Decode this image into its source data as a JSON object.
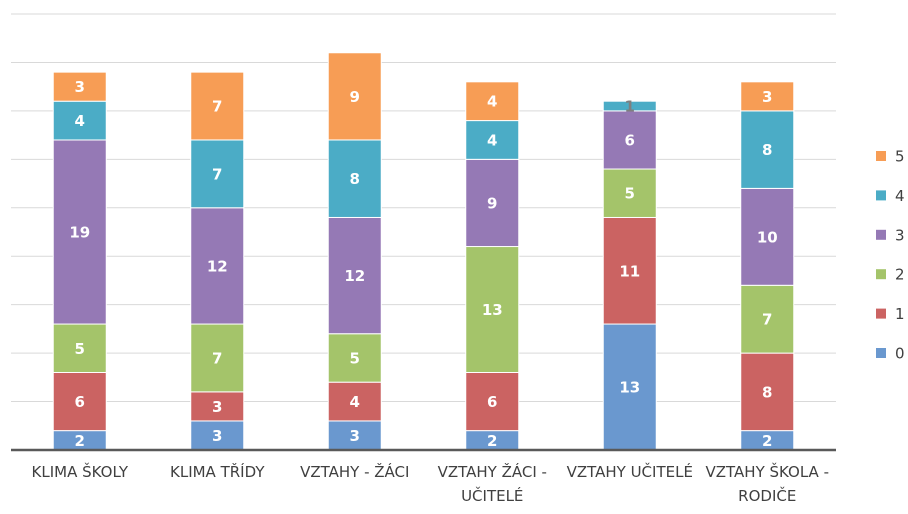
{
  "chart_data": {
    "type": "stacked_bar",
    "categories": [
      "KLIMA ŠKOLY",
      "KLIMA TŘÍDY",
      "VZTAHY - ŽÁCI",
      "VZTAHY ŽÁCI - UČITELÉ",
      "VZTAHY UČITELÉ",
      "VZTAHY ŠKOLA - RODIČE"
    ],
    "series": [
      {
        "name": "0",
        "color": "#6a98cf",
        "values": [
          2,
          3,
          3,
          2,
          13,
          2
        ]
      },
      {
        "name": "1",
        "color": "#cb6362",
        "values": [
          6,
          3,
          4,
          6,
          11,
          8
        ]
      },
      {
        "name": "2",
        "color": "#a4c46a",
        "values": [
          5,
          7,
          5,
          13,
          5,
          7
        ]
      },
      {
        "name": "3",
        "color": "#9579b5",
        "values": [
          19,
          12,
          12,
          9,
          6,
          10
        ]
      },
      {
        "name": "4",
        "color": "#4bacc6",
        "values": [
          4,
          7,
          8,
          4,
          1,
          8
        ]
      },
      {
        "name": "5",
        "color": "#f79d55",
        "values": [
          3,
          7,
          9,
          4,
          null,
          3
        ]
      }
    ],
    "ylim": [
      0,
      45
    ],
    "yticks": [
      0,
      5,
      10,
      15,
      20,
      25,
      30,
      35,
      40,
      45
    ],
    "grid": true,
    "legend": "right"
  }
}
